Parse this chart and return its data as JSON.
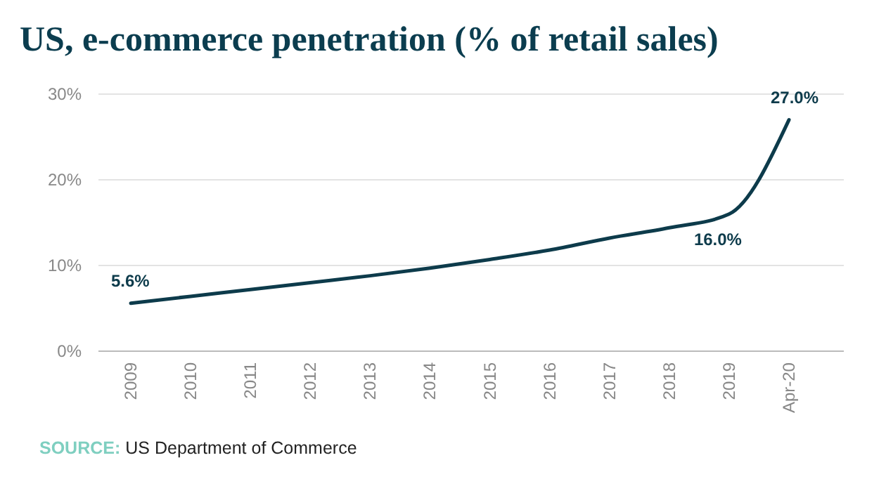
{
  "chart_data": {
    "type": "line",
    "title": "US, e-commerce penetration (% of retail sales)",
    "categories": [
      "2009",
      "2010",
      "2011",
      "2012",
      "2013",
      "2014",
      "2015",
      "2016",
      "2017",
      "2018",
      "2019",
      "Apr-20"
    ],
    "series": [
      {
        "color": "#0d3b4b",
        "values": [
          5.6,
          6.4,
          7.2,
          8.0,
          8.8,
          9.7,
          10.7,
          11.8,
          13.2,
          14.4,
          16.0,
          27.0
        ],
        "value_labels": [
          "5.6%",
          null,
          null,
          null,
          null,
          null,
          null,
          null,
          null,
          null,
          "16.0%",
          "27.0%"
        ]
      }
    ],
    "ylim": [
      0,
      30
    ],
    "yticks": [
      {
        "value": 0,
        "label": "0%"
      },
      {
        "value": 10,
        "label": "10%"
      },
      {
        "value": 20,
        "label": "20%"
      },
      {
        "value": 30,
        "label": "30%"
      }
    ],
    "grid": "y",
    "marker": "none",
    "line_style": "solid",
    "annotations": [
      "SOURCE: US Department of Commerce"
    ]
  }
}
